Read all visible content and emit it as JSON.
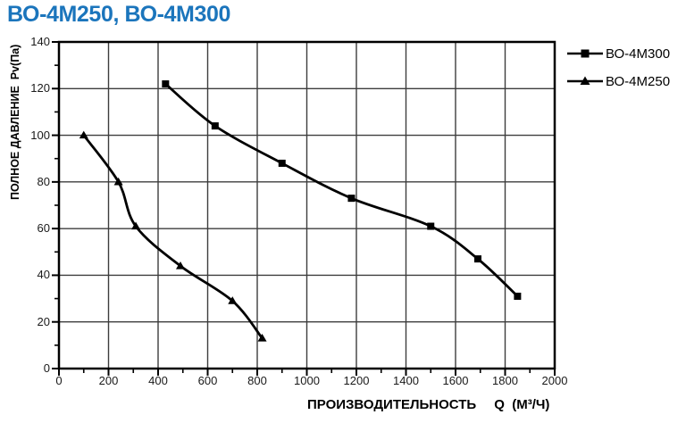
{
  "title": "ВО-4М250, ВО-4М300",
  "colors": {
    "title": "#1b75bc",
    "line": "#000000",
    "grid": "#3d3d3d",
    "frame": "#000000",
    "background": "#ffffff",
    "text": "#000000"
  },
  "chart_data": {
    "type": "line",
    "title": "ВО-4М250, ВО-4М300",
    "xlabel": "ПРОИЗВОДИТЕЛЬНОСТЬ",
    "xlabel_unit": "Q  (М³/Ч)",
    "ylabel": "ПОЛНОЕ ДАВЛЕНИЕ  Pv(Па)",
    "xlim": [
      0,
      2000
    ],
    "ylim": [
      0,
      140
    ],
    "x_tick_labels": [
      0,
      200,
      400,
      600,
      800,
      1000,
      1200,
      1400,
      1600,
      1800,
      2000
    ],
    "y_tick_labels": [
      0,
      20,
      40,
      60,
      80,
      100,
      120,
      140
    ],
    "x_minor_step": 100,
    "y_minor_step": 10,
    "grid": true,
    "legend_position": "top-right",
    "series": [
      {
        "name": "ВО-4М300",
        "marker": "square",
        "color": "#000000",
        "points": [
          [
            430,
            122
          ],
          [
            630,
            104
          ],
          [
            900,
            88
          ],
          [
            1180,
            73
          ],
          [
            1500,
            61
          ],
          [
            1690,
            47
          ],
          [
            1850,
            31
          ]
        ]
      },
      {
        "name": "ВО-4М250",
        "marker": "triangle",
        "color": "#000000",
        "points": [
          [
            100,
            100
          ],
          [
            240,
            80
          ],
          [
            310,
            61
          ],
          [
            490,
            44
          ],
          [
            700,
            29
          ],
          [
            820,
            13
          ]
        ]
      }
    ]
  }
}
